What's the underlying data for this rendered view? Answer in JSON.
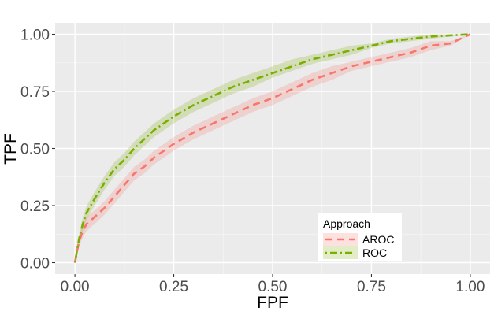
{
  "chart_data": {
    "type": "line",
    "title": "",
    "xlabel": "FPF",
    "ylabel": "TPF",
    "xlim": [
      -0.05,
      1.05
    ],
    "ylim": [
      -0.05,
      1.05
    ],
    "x_ticks": [
      0.0,
      0.25,
      0.5,
      0.75,
      1.0
    ],
    "y_ticks": [
      0.0,
      0.25,
      0.5,
      0.75,
      1.0
    ],
    "x_tick_labels": [
      "0.00",
      "0.25",
      "0.50",
      "0.75",
      "1.00"
    ],
    "y_tick_labels": [
      "0.00",
      "0.25",
      "0.50",
      "0.75",
      "1.00"
    ],
    "grid": true,
    "legend": {
      "title": "Approach",
      "position": "bottom-right"
    },
    "series": [
      {
        "name": "AROC",
        "color": "#F8766D",
        "linestyle": "dashed",
        "x": [
          0.0,
          0.01,
          0.02,
          0.03,
          0.05,
          0.075,
          0.1,
          0.125,
          0.15,
          0.175,
          0.2,
          0.25,
          0.3,
          0.35,
          0.4,
          0.45,
          0.5,
          0.55,
          0.6,
          0.65,
          0.7,
          0.75,
          0.8,
          0.85,
          0.9,
          0.95,
          1.0
        ],
        "y": [
          0.0,
          0.09,
          0.14,
          0.17,
          0.2,
          0.24,
          0.29,
          0.34,
          0.39,
          0.42,
          0.46,
          0.52,
          0.57,
          0.61,
          0.65,
          0.69,
          0.72,
          0.76,
          0.8,
          0.83,
          0.86,
          0.88,
          0.9,
          0.92,
          0.95,
          0.96,
          1.0
        ],
        "lower": [
          0.0,
          0.07,
          0.11,
          0.14,
          0.17,
          0.21,
          0.26,
          0.31,
          0.36,
          0.39,
          0.43,
          0.49,
          0.54,
          0.58,
          0.62,
          0.66,
          0.69,
          0.73,
          0.77,
          0.8,
          0.84,
          0.86,
          0.88,
          0.9,
          0.93,
          0.95,
          1.0
        ],
        "upper": [
          0.0,
          0.11,
          0.17,
          0.2,
          0.23,
          0.27,
          0.32,
          0.37,
          0.42,
          0.45,
          0.49,
          0.55,
          0.6,
          0.64,
          0.68,
          0.72,
          0.75,
          0.79,
          0.83,
          0.86,
          0.88,
          0.9,
          0.92,
          0.94,
          0.97,
          0.97,
          1.0
        ]
      },
      {
        "name": "ROC",
        "color": "#7CAE00",
        "linestyle": "dotdash",
        "x": [
          0.0,
          0.01,
          0.02,
          0.03,
          0.05,
          0.075,
          0.1,
          0.125,
          0.15,
          0.175,
          0.2,
          0.25,
          0.3,
          0.35,
          0.4,
          0.45,
          0.5,
          0.55,
          0.6,
          0.65,
          0.7,
          0.75,
          0.8,
          0.85,
          0.9,
          0.95,
          1.0
        ],
        "y": [
          0.0,
          0.1,
          0.17,
          0.22,
          0.28,
          0.35,
          0.41,
          0.45,
          0.5,
          0.54,
          0.58,
          0.64,
          0.69,
          0.73,
          0.77,
          0.8,
          0.83,
          0.86,
          0.89,
          0.91,
          0.93,
          0.95,
          0.97,
          0.98,
          0.99,
          0.995,
          1.0
        ],
        "lower": [
          0.0,
          0.08,
          0.14,
          0.19,
          0.25,
          0.32,
          0.38,
          0.42,
          0.47,
          0.51,
          0.55,
          0.61,
          0.66,
          0.7,
          0.74,
          0.77,
          0.81,
          0.84,
          0.87,
          0.89,
          0.91,
          0.94,
          0.96,
          0.97,
          0.98,
          0.99,
          1.0
        ],
        "upper": [
          0.0,
          0.12,
          0.2,
          0.25,
          0.31,
          0.38,
          0.44,
          0.48,
          0.53,
          0.57,
          0.61,
          0.67,
          0.72,
          0.76,
          0.8,
          0.83,
          0.86,
          0.89,
          0.91,
          0.93,
          0.95,
          0.96,
          0.98,
          0.99,
          1.0,
          1.0,
          1.0
        ]
      }
    ]
  }
}
